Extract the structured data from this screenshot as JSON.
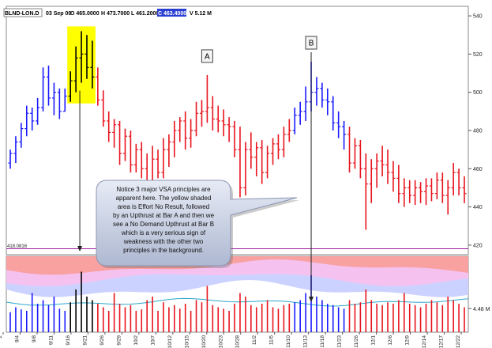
{
  "chart_data": {
    "type": "ohlc_with_volume",
    "header": {
      "symbol": "BLND-LON.D",
      "date": "03 Sep 09",
      "open": "O 465.0000",
      "high": "H 473.7000",
      "low": "L 461.2000",
      "close": "C 463.4000",
      "volume": "V 5.12 M"
    },
    "price_axis": {
      "min": 415,
      "max": 545,
      "ticks": [
        420,
        440,
        460,
        480,
        500,
        520,
        540
      ]
    },
    "reference_line": {
      "value": 418.0816,
      "label": "418.0816"
    },
    "volume_axis_label": "4.48 M",
    "x_ticks": [
      "2",
      "9/4",
      "9/8",
      "9/11",
      "9/16",
      "9/21",
      "9/26",
      "9/29",
      "10/2",
      "10/7",
      "10/12",
      "10/15",
      "10/20",
      "10/23",
      "10/28",
      "11/2",
      "11/5",
      "11/10",
      "11/13",
      "11/18",
      "11/23",
      "11/26",
      "12/1",
      "12/6",
      "12/9",
      "12/14",
      "12/17",
      "12/22"
    ],
    "bars": [
      {
        "o": 463,
        "h": 470,
        "l": 460,
        "c": 468,
        "color": "blue",
        "v": 0.28
      },
      {
        "o": 468,
        "h": 477,
        "l": 463,
        "c": 474,
        "color": "blue",
        "v": 0.35
      },
      {
        "o": 474,
        "h": 484,
        "l": 471,
        "c": 481,
        "color": "blue",
        "v": 0.32
      },
      {
        "o": 481,
        "h": 493,
        "l": 477,
        "c": 489,
        "color": "blue",
        "v": 0.3
      },
      {
        "o": 489,
        "h": 492,
        "l": 480,
        "c": 485,
        "color": "blue",
        "v": 0.55
      },
      {
        "o": 485,
        "h": 497,
        "l": 483,
        "c": 492,
        "color": "blue",
        "v": 0.4
      },
      {
        "o": 492,
        "h": 513,
        "l": 490,
        "c": 508,
        "color": "blue",
        "v": 0.45
      },
      {
        "o": 508,
        "h": 514,
        "l": 493,
        "c": 497,
        "color": "blue",
        "v": 0.38
      },
      {
        "o": 497,
        "h": 505,
        "l": 488,
        "c": 500,
        "color": "blue",
        "v": 0.5
      },
      {
        "o": 500,
        "h": 502,
        "l": 486,
        "c": 490,
        "color": "blue",
        "v": 0.33
      },
      {
        "o": 490,
        "h": 502,
        "l": 490,
        "c": 498,
        "color": "blue",
        "v": 0.3
      },
      {
        "o": 498,
        "h": 511,
        "l": 495,
        "c": 506,
        "color": "black",
        "v": 0.42
      },
      {
        "o": 506,
        "h": 524,
        "l": 500,
        "c": 518,
        "color": "black",
        "v": 0.6
      },
      {
        "o": 518,
        "h": 532,
        "l": 505,
        "c": 520,
        "color": "black",
        "v": 0.85
      },
      {
        "o": 520,
        "h": 530,
        "l": 507,
        "c": 513,
        "color": "black",
        "v": 0.5
      },
      {
        "o": 513,
        "h": 527,
        "l": 502,
        "c": 508,
        "color": "black",
        "v": 0.45
      },
      {
        "o": 508,
        "h": 513,
        "l": 493,
        "c": 496,
        "color": "red",
        "v": 0.4
      },
      {
        "o": 496,
        "h": 501,
        "l": 482,
        "c": 485,
        "color": "red",
        "v": 0.35
      },
      {
        "o": 485,
        "h": 490,
        "l": 474,
        "c": 479,
        "color": "red",
        "v": 0.3
      },
      {
        "o": 479,
        "h": 486,
        "l": 471,
        "c": 483,
        "color": "red",
        "v": 0.55
      },
      {
        "o": 483,
        "h": 485,
        "l": 462,
        "c": 468,
        "color": "red",
        "v": 0.4
      },
      {
        "o": 468,
        "h": 481,
        "l": 464,
        "c": 477,
        "color": "red",
        "v": 0.35
      },
      {
        "o": 477,
        "h": 480,
        "l": 458,
        "c": 462,
        "color": "red",
        "v": 0.38
      },
      {
        "o": 462,
        "h": 473,
        "l": 458,
        "c": 470,
        "color": "red",
        "v": 0.3
      },
      {
        "o": 470,
        "h": 474,
        "l": 455,
        "c": 460,
        "color": "red",
        "v": 0.32
      },
      {
        "o": 460,
        "h": 468,
        "l": 448,
        "c": 452,
        "color": "red",
        "v": 0.45
      },
      {
        "o": 452,
        "h": 472,
        "l": 448,
        "c": 465,
        "color": "red",
        "v": 0.5
      },
      {
        "o": 465,
        "h": 470,
        "l": 455,
        "c": 458,
        "color": "red",
        "v": 0.3
      },
      {
        "o": 458,
        "h": 476,
        "l": 455,
        "c": 470,
        "color": "red",
        "v": 0.42
      },
      {
        "o": 470,
        "h": 478,
        "l": 461,
        "c": 474,
        "color": "red",
        "v": 0.35
      },
      {
        "o": 474,
        "h": 485,
        "l": 466,
        "c": 480,
        "color": "red",
        "v": 0.38
      },
      {
        "o": 480,
        "h": 487,
        "l": 474,
        "c": 485,
        "color": "red",
        "v": 0.33
      },
      {
        "o": 485,
        "h": 490,
        "l": 470,
        "c": 476,
        "color": "red",
        "v": 0.4
      },
      {
        "o": 476,
        "h": 486,
        "l": 471,
        "c": 480,
        "color": "red",
        "v": 0.3
      },
      {
        "o": 480,
        "h": 495,
        "l": 477,
        "c": 489,
        "color": "red",
        "v": 0.45
      },
      {
        "o": 489,
        "h": 496,
        "l": 482,
        "c": 490,
        "color": "red",
        "v": 0.42
      },
      {
        "o": 490,
        "h": 509,
        "l": 484,
        "c": 492,
        "color": "red",
        "v": 0.65
      },
      {
        "o": 492,
        "h": 498,
        "l": 480,
        "c": 486,
        "color": "red",
        "v": 0.38
      },
      {
        "o": 486,
        "h": 493,
        "l": 479,
        "c": 485,
        "color": "red",
        "v": 0.35
      },
      {
        "o": 485,
        "h": 491,
        "l": 477,
        "c": 483,
        "color": "red",
        "v": 0.33
      },
      {
        "o": 483,
        "h": 487,
        "l": 474,
        "c": 482,
        "color": "red",
        "v": 0.3
      },
      {
        "o": 482,
        "h": 485,
        "l": 466,
        "c": 470,
        "color": "red",
        "v": 0.4
      },
      {
        "o": 470,
        "h": 482,
        "l": 445,
        "c": 450,
        "color": "red",
        "v": 0.55
      },
      {
        "o": 450,
        "h": 474,
        "l": 446,
        "c": 470,
        "color": "red",
        "v": 0.5
      },
      {
        "o": 470,
        "h": 479,
        "l": 460,
        "c": 466,
        "color": "red",
        "v": 0.38
      },
      {
        "o": 466,
        "h": 474,
        "l": 456,
        "c": 471,
        "color": "red",
        "v": 0.35
      },
      {
        "o": 471,
        "h": 475,
        "l": 452,
        "c": 458,
        "color": "red",
        "v": 0.4
      },
      {
        "o": 458,
        "h": 472,
        "l": 455,
        "c": 468,
        "color": "red",
        "v": 0.45
      },
      {
        "o": 468,
        "h": 476,
        "l": 462,
        "c": 473,
        "color": "red",
        "v": 0.35
      },
      {
        "o": 473,
        "h": 478,
        "l": 465,
        "c": 470,
        "color": "red",
        "v": 0.33
      },
      {
        "o": 470,
        "h": 482,
        "l": 466,
        "c": 478,
        "color": "red",
        "v": 0.38
      },
      {
        "o": 478,
        "h": 486,
        "l": 474,
        "c": 480,
        "color": "red",
        "v": 0.4
      },
      {
        "o": 480,
        "h": 492,
        "l": 478,
        "c": 488,
        "color": "blue",
        "v": 0.42
      },
      {
        "o": 488,
        "h": 495,
        "l": 483,
        "c": 490,
        "color": "blue",
        "v": 0.45
      },
      {
        "o": 490,
        "h": 503,
        "l": 485,
        "c": 495,
        "color": "blue",
        "v": 0.55
      },
      {
        "o": 495,
        "h": 516,
        "l": 490,
        "c": 500,
        "color": "blue",
        "v": 0.8
      },
      {
        "o": 500,
        "h": 508,
        "l": 493,
        "c": 502,
        "color": "blue",
        "v": 0.5
      },
      {
        "o": 502,
        "h": 505,
        "l": 492,
        "c": 496,
        "color": "blue",
        "v": 0.45
      },
      {
        "o": 496,
        "h": 502,
        "l": 488,
        "c": 495,
        "color": "blue",
        "v": 0.4
      },
      {
        "o": 495,
        "h": 498,
        "l": 480,
        "c": 484,
        "color": "blue",
        "v": 0.38
      },
      {
        "o": 484,
        "h": 490,
        "l": 476,
        "c": 482,
        "color": "blue",
        "v": 0.35
      },
      {
        "o": 482,
        "h": 485,
        "l": 470,
        "c": 478,
        "color": "blue",
        "v": 0.33
      },
      {
        "o": 478,
        "h": 482,
        "l": 458,
        "c": 463,
        "color": "red",
        "v": 0.45
      },
      {
        "o": 463,
        "h": 476,
        "l": 460,
        "c": 472,
        "color": "red",
        "v": 0.4
      },
      {
        "o": 472,
        "h": 475,
        "l": 455,
        "c": 460,
        "color": "red",
        "v": 0.42
      },
      {
        "o": 460,
        "h": 468,
        "l": 428,
        "c": 452,
        "color": "red",
        "v": 0.6
      },
      {
        "o": 452,
        "h": 465,
        "l": 442,
        "c": 460,
        "color": "red",
        "v": 0.45
      },
      {
        "o": 460,
        "h": 468,
        "l": 450,
        "c": 464,
        "color": "red",
        "v": 0.4
      },
      {
        "o": 464,
        "h": 472,
        "l": 456,
        "c": 462,
        "color": "red",
        "v": 0.38
      },
      {
        "o": 462,
        "h": 470,
        "l": 452,
        "c": 458,
        "color": "red",
        "v": 0.42
      },
      {
        "o": 458,
        "h": 464,
        "l": 448,
        "c": 455,
        "color": "red",
        "v": 0.4
      },
      {
        "o": 455,
        "h": 462,
        "l": 442,
        "c": 447,
        "color": "red",
        "v": 0.45
      },
      {
        "o": 447,
        "h": 455,
        "l": 440,
        "c": 450,
        "color": "red",
        "v": 0.55
      },
      {
        "o": 450,
        "h": 454,
        "l": 442,
        "c": 446,
        "color": "red",
        "v": 0.4
      },
      {
        "o": 446,
        "h": 454,
        "l": 441,
        "c": 450,
        "color": "red",
        "v": 0.38
      },
      {
        "o": 450,
        "h": 453,
        "l": 442,
        "c": 448,
        "color": "red",
        "v": 0.35
      },
      {
        "o": 448,
        "h": 455,
        "l": 441,
        "c": 451,
        "color": "red",
        "v": 0.4
      },
      {
        "o": 451,
        "h": 455,
        "l": 443,
        "c": 447,
        "color": "red",
        "v": 0.45
      },
      {
        "o": 447,
        "h": 458,
        "l": 444,
        "c": 454,
        "color": "red",
        "v": 0.42
      },
      {
        "o": 454,
        "h": 458,
        "l": 442,
        "c": 446,
        "color": "red",
        "v": 0.38
      },
      {
        "o": 446,
        "h": 454,
        "l": 436,
        "c": 450,
        "color": "red",
        "v": 0.5
      },
      {
        "o": 450,
        "h": 463,
        "l": 446,
        "c": 458,
        "color": "red",
        "v": 0.45
      },
      {
        "o": 458,
        "h": 460,
        "l": 446,
        "c": 450,
        "color": "red",
        "v": 0.4
      },
      {
        "o": 450,
        "h": 456,
        "l": 442,
        "c": 447,
        "color": "red",
        "v": 0.35
      }
    ],
    "annotations": [
      {
        "label": "A",
        "bar_index": 36
      },
      {
        "label": "B",
        "bar_index": 55
      }
    ],
    "highlight": {
      "from_index": 11,
      "to_index": 15,
      "color": "#ffff00"
    },
    "callout_text": "Notice 3 major VSA principles are apparent here. The yellow shaded area is Effort No Result, followed by an Upthrust at Bar A and then we see a No Demand Upthrust at Bar B which is a very serious sign of weakness with the other two principles in the background.",
    "colors": {
      "up": "#1a1aff",
      "down": "#e8141e",
      "neutral": "#000000",
      "highlight": "#ffff00",
      "ref_line": "#a020a0"
    }
  }
}
